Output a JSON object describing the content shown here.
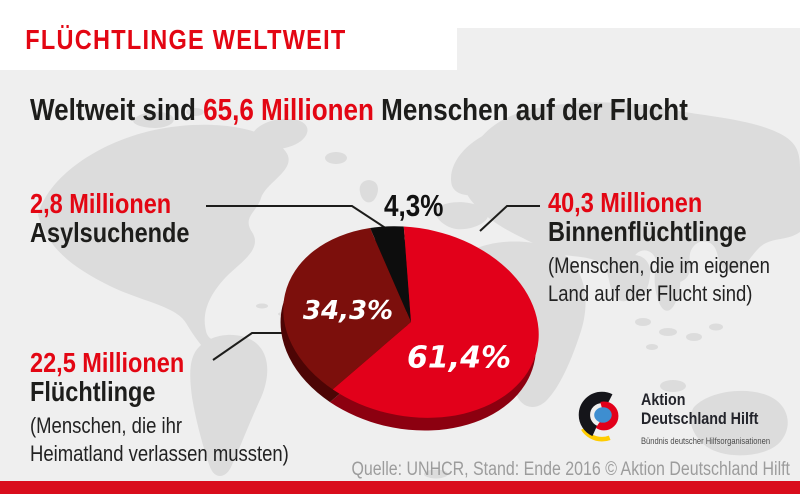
{
  "title": "FLÜCHTLINGE WELTWEIT",
  "headline": {
    "prefix": "Weltweit sind ",
    "highlight": "65,6 Millionen",
    "suffix": " Menschen auf der Flucht"
  },
  "chart_data": {
    "type": "pie",
    "title": "Weltweit sind 65,6 Millionen Menschen auf der Flucht",
    "total_label": "65,6 Millionen",
    "start_angle_deg": -27.5,
    "tilt_deg": 12,
    "legend_position": "callouts",
    "slices": [
      {
        "name": "Asylsuchende",
        "amount": "2,8 Millionen",
        "percent": 4.3,
        "percent_label": "4,3%",
        "color": "#0d0d0d",
        "side_color": "#000000"
      },
      {
        "name": "Binnenflüchtlinge",
        "amount": "40,3 Millionen",
        "percent": 61.4,
        "percent_label": "61,4%",
        "color": "#e2001a",
        "side_color": "#8c0010",
        "note_lines": [
          "(Menschen, die im eigenen",
          "Land auf der Flucht sind)"
        ]
      },
      {
        "name": "Flüchtlinge",
        "amount": "22,5 Millionen",
        "percent": 34.3,
        "percent_label": "34,3%",
        "color": "#7c0f0c",
        "side_color": "#4d0505",
        "note_lines": [
          "(Menschen, die ihr",
          "Heimatland verlassen mussten)"
        ]
      }
    ]
  },
  "logo": {
    "line1": "Aktion",
    "line2": "Deutschland Hilft",
    "tagline": "Bündnis deutscher Hilfsorganisationen",
    "colors": {
      "black": "#15151a",
      "red": "#e2001a",
      "gold": "#ffcc00",
      "blue": "#3e8ed0"
    }
  },
  "source": "Quelle: UNHCR, Stand: Ende 2016 © Aktion Deutschland Hilft",
  "colors": {
    "brand_red": "#e30613",
    "text_dark": "#1d1d1b",
    "panel_gray": "#efefef",
    "map_gray": "#dcdcdc",
    "footer_bar_red": "#d90d1c",
    "source_gray": "#9c9c9c"
  }
}
